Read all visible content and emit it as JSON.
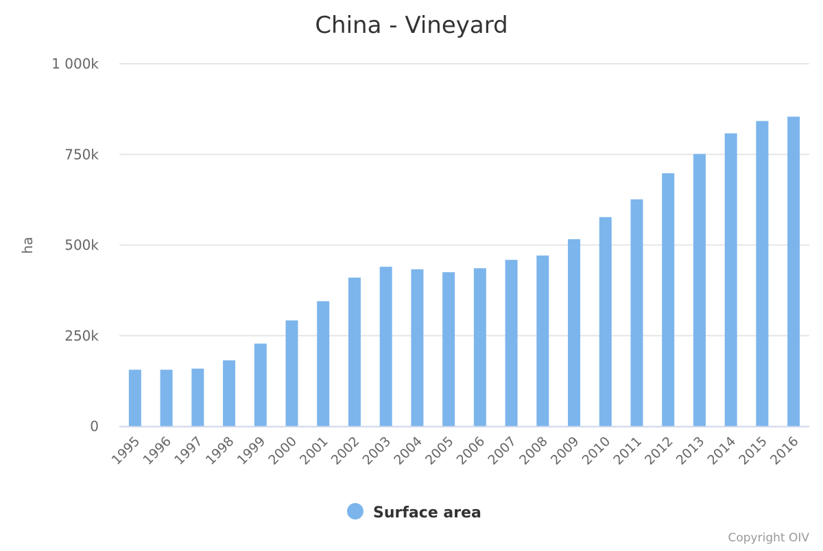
{
  "chart_data": {
    "type": "bar",
    "title": "China - Vineyard",
    "xlabel": "",
    "ylabel": "ha",
    "ylim": [
      0,
      1000000
    ],
    "yticks": [
      0,
      250000,
      500000,
      750000,
      1000000
    ],
    "ytick_labels": [
      "0",
      "250k",
      "500k",
      "750k",
      "1 000k"
    ],
    "grid": true,
    "categories": [
      "1995",
      "1996",
      "1997",
      "1998",
      "1999",
      "2000",
      "2001",
      "2002",
      "2003",
      "2004",
      "2005",
      "2006",
      "2007",
      "2008",
      "2009",
      "2010",
      "2011",
      "2012",
      "2013",
      "2014",
      "2015",
      "2016"
    ],
    "series": [
      {
        "name": "Surface area",
        "color": "#7cb5ec",
        "values": [
          156000,
          156000,
          159000,
          182000,
          228000,
          292000,
          345000,
          410000,
          440000,
          433000,
          425000,
          436000,
          459000,
          471000,
          516000,
          577000,
          626000,
          698000,
          751000,
          808000,
          842000,
          854000
        ]
      }
    ],
    "legend": "bottom-center",
    "credits": "Copyright OIV"
  }
}
